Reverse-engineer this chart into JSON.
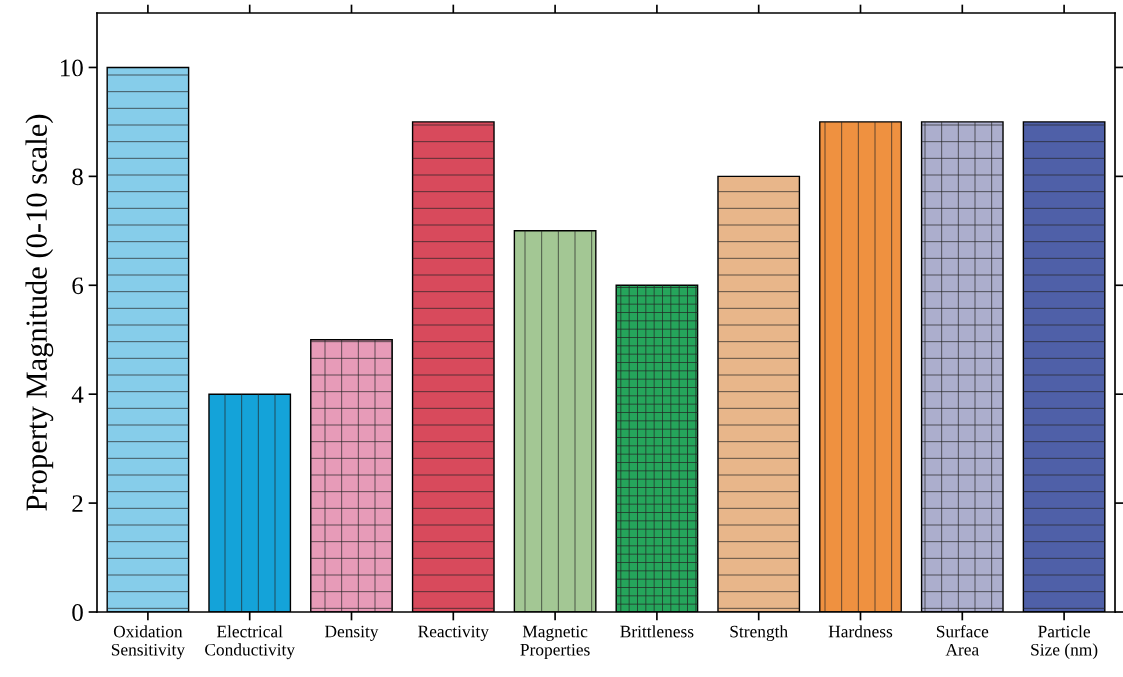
{
  "chart_data": {
    "type": "bar",
    "ylabel": "Property Magnitude (0-10 scale)",
    "categories": [
      "Oxidation\nSensitivity",
      "Electrical\nConductivity",
      "Density",
      "Reactivity",
      "Magnetic\nProperties",
      "Brittleness",
      "Strength",
      "Hardness",
      "Surface\nArea",
      "Particle\nSize (nm)"
    ],
    "values": [
      10,
      4,
      5,
      9,
      7,
      6,
      8,
      9,
      9,
      9
    ],
    "colors": [
      "#86cdea",
      "#14a3d9",
      "#e79bb8",
      "#d84a5c",
      "#a3c794",
      "#25a55b",
      "#e8b68a",
      "#ef9140",
      "#acaecd",
      "#4f60a8"
    ],
    "ylim": [
      0,
      11
    ],
    "yticks": [
      0,
      2,
      4,
      6,
      8,
      10
    ],
    "grid": false
  }
}
